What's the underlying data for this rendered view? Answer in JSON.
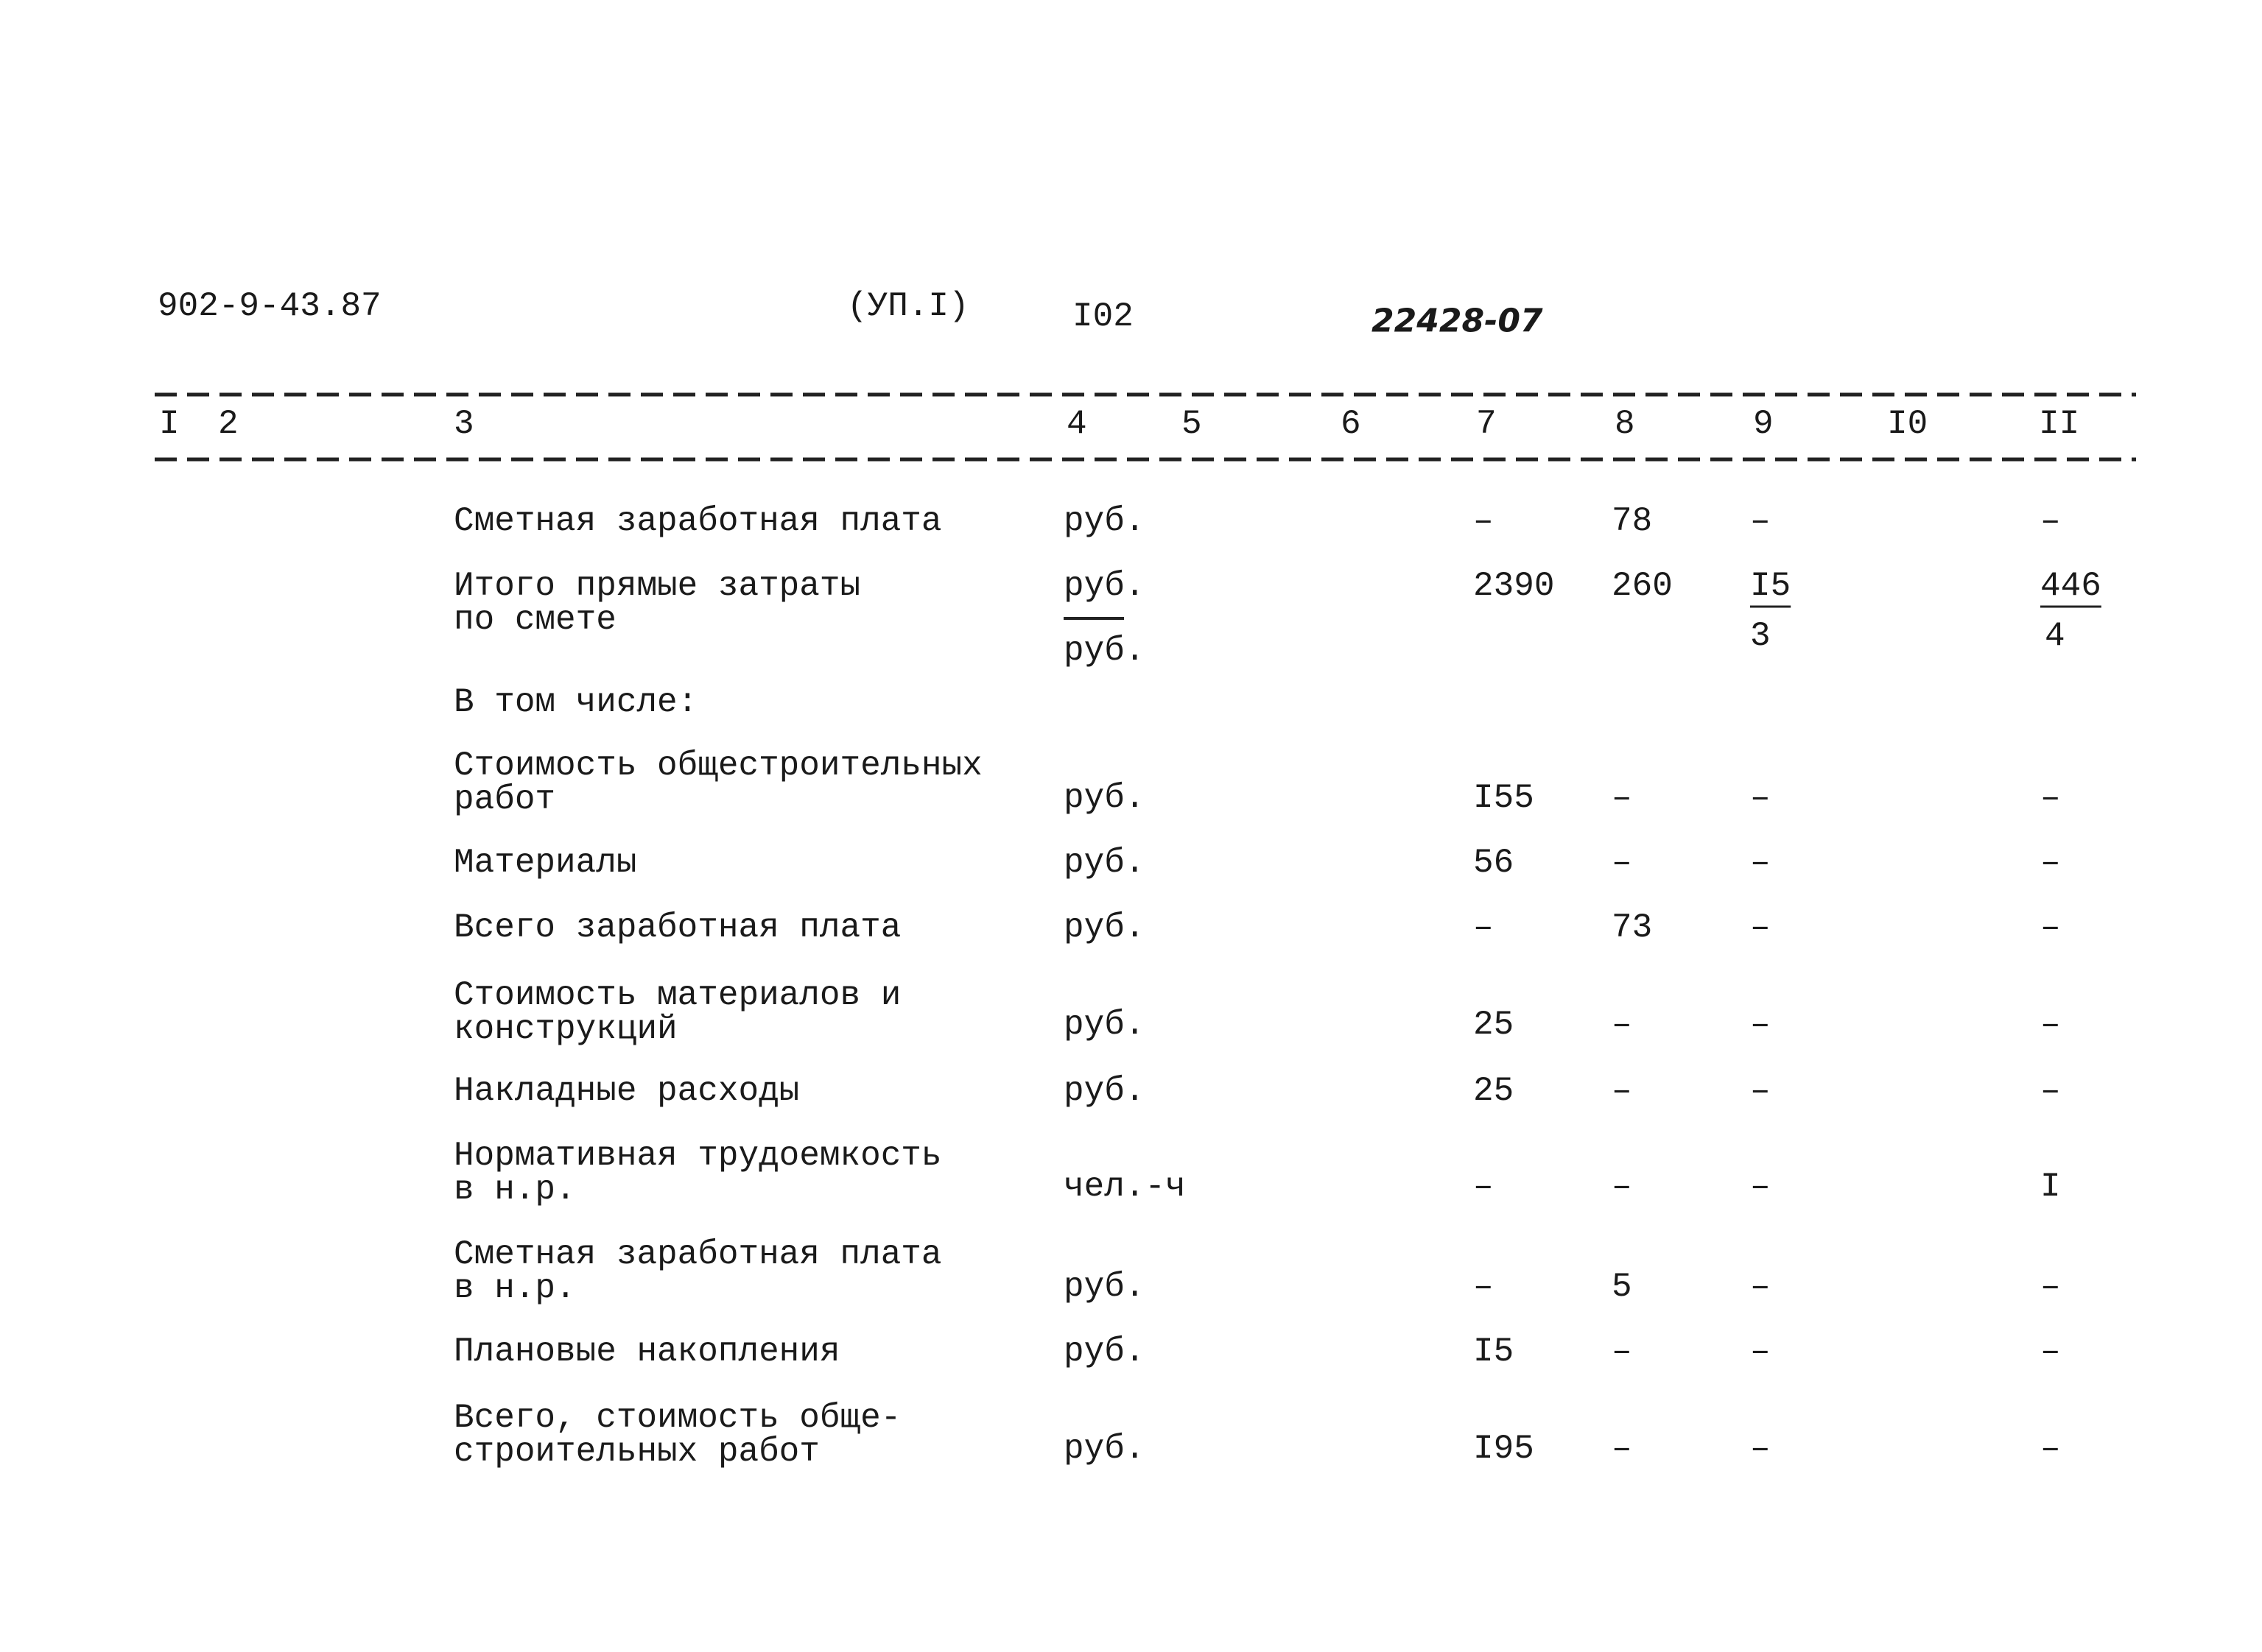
{
  "header": {
    "code": "902-9-43.87",
    "section": "(УП.I)",
    "page": "I02",
    "number": "22428-07"
  },
  "table": {
    "columns": [
      "I",
      "2",
      "3",
      "4",
      "5",
      "6",
      "7",
      "8",
      "9",
      "I0",
      "II"
    ],
    "rows": [
      {
        "name": [
          "Сметная заработная плата"
        ],
        "unit": "руб.",
        "c7": "–",
        "c8": "78",
        "c9": "–",
        "c11": "–"
      },
      {
        "name": [
          "Итого прямые затраты",
          "по смете"
        ],
        "unit": "руб.",
        "unit_lower": "руб.",
        "c7": "2390",
        "c8": "260",
        "c9": "I5",
        "c9_lower": "3",
        "c11": "446",
        "c11_lower": "4"
      },
      {
        "name": [
          "В том числе:"
        ]
      },
      {
        "name": [
          "Стоимость общестроительных",
          "работ"
        ],
        "unit": "руб.",
        "c7": "I55",
        "c8": "–",
        "c9": "–",
        "c11": "–"
      },
      {
        "name": [
          "Материалы"
        ],
        "unit": "руб.",
        "c7": "56",
        "c8": "–",
        "c9": "–",
        "c11": "–"
      },
      {
        "name": [
          "Всего заработная плата"
        ],
        "unit": "руб.",
        "c7": "–",
        "c8": "73",
        "c9": "–",
        "c11": "–"
      },
      {
        "name": [
          "Стоимость материалов и",
          "конструкций"
        ],
        "unit": "руб.",
        "c7": "25",
        "c8": "–",
        "c9": "–",
        "c11": "–"
      },
      {
        "name": [
          "Накладные расходы"
        ],
        "unit": "руб.",
        "c7": "25",
        "c8": "–",
        "c9": "–",
        "c11": "–"
      },
      {
        "name": [
          "Нормативная трудоемкость",
          "в н.р."
        ],
        "unit": "чел.-ч",
        "c7": "–",
        "c8": "–",
        "c9": "–",
        "c11": "I"
      },
      {
        "name": [
          "Сметная заработная плата",
          "в н.р."
        ],
        "unit": "руб.",
        "c7": "–",
        "c8": "5",
        "c9": "–",
        "c11": "–"
      },
      {
        "name": [
          "Плановые накопления"
        ],
        "unit": "руб.",
        "c7": "I5",
        "c8": "–",
        "c9": "–",
        "c11": "–"
      },
      {
        "name": [
          "Всего, стоимость обще-",
          "строительных работ"
        ],
        "unit": "руб.",
        "c7": "I95",
        "c8": "–",
        "c9": "–",
        "c11": "–"
      }
    ]
  }
}
